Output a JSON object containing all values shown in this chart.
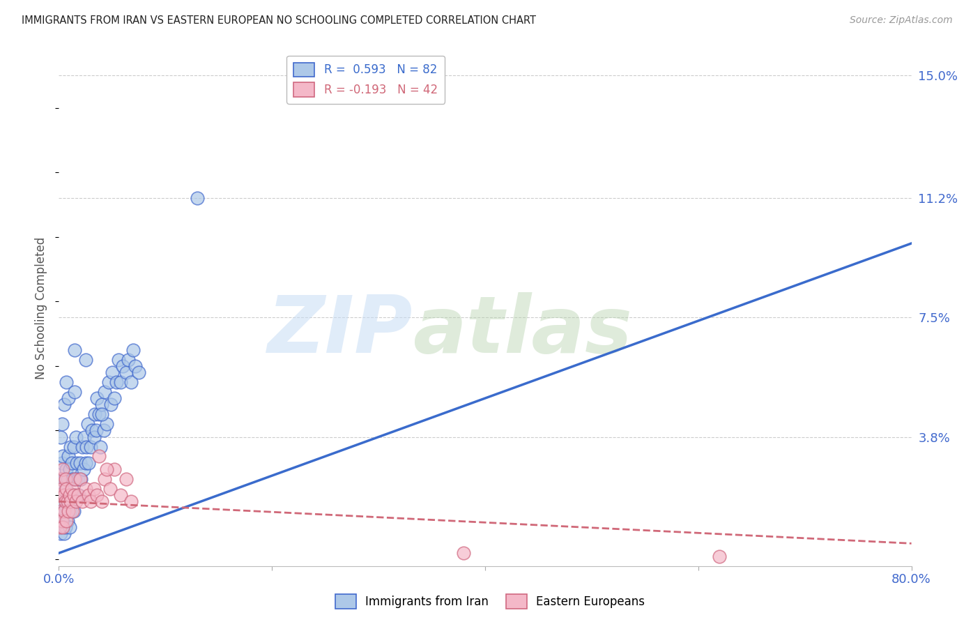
{
  "title": "IMMIGRANTS FROM IRAN VS EASTERN EUROPEAN NO SCHOOLING COMPLETED CORRELATION CHART",
  "source": "Source: ZipAtlas.com",
  "ylabel": "No Schooling Completed",
  "xlim": [
    0.0,
    0.8
  ],
  "ylim": [
    -0.002,
    0.158
  ],
  "ytick_vals": [
    0.0,
    0.038,
    0.075,
    0.112,
    0.15
  ],
  "ytick_labels": [
    "",
    "3.8%",
    "7.5%",
    "11.2%",
    "15.0%"
  ],
  "xtick_vals": [
    0.0,
    0.2,
    0.4,
    0.6,
    0.8
  ],
  "xtick_labels": [
    "0.0%",
    "",
    "",
    "",
    "80.0%"
  ],
  "legend1_label": "R =  0.593   N = 82",
  "legend2_label": "R = -0.193   N = 42",
  "iran_face_color": "#adc8e8",
  "iran_edge_color": "#4169cd",
  "eastern_face_color": "#f4b8c8",
  "eastern_edge_color": "#d06880",
  "iran_line_color": "#3a6bcc",
  "eastern_line_color": "#d06878",
  "grid_color": "#cccccc",
  "iran_trend_x0": 0.0,
  "iran_trend_x1": 0.8,
  "iran_trend_y0": 0.002,
  "iran_trend_y1": 0.098,
  "eastern_trend_x0": 0.0,
  "eastern_trend_x1": 0.8,
  "eastern_trend_y0": 0.018,
  "eastern_trend_y1": 0.005,
  "iran_scatter_x": [
    0.001,
    0.001,
    0.002,
    0.002,
    0.002,
    0.003,
    0.003,
    0.003,
    0.004,
    0.004,
    0.004,
    0.005,
    0.005,
    0.005,
    0.006,
    0.006,
    0.007,
    0.007,
    0.008,
    0.008,
    0.009,
    0.009,
    0.01,
    0.01,
    0.011,
    0.011,
    0.012,
    0.012,
    0.013,
    0.014,
    0.014,
    0.015,
    0.016,
    0.016,
    0.017,
    0.018,
    0.019,
    0.02,
    0.021,
    0.022,
    0.023,
    0.024,
    0.025,
    0.026,
    0.027,
    0.028,
    0.03,
    0.031,
    0.033,
    0.034,
    0.035,
    0.036,
    0.038,
    0.039,
    0.04,
    0.042,
    0.043,
    0.045,
    0.047,
    0.049,
    0.05,
    0.052,
    0.054,
    0.056,
    0.058,
    0.06,
    0.063,
    0.065,
    0.068,
    0.07,
    0.072,
    0.075,
    0.002,
    0.003,
    0.005,
    0.007,
    0.009,
    0.015,
    0.025,
    0.04,
    0.13,
    0.015
  ],
  "iran_scatter_y": [
    0.01,
    0.02,
    0.008,
    0.015,
    0.025,
    0.01,
    0.018,
    0.03,
    0.012,
    0.02,
    0.032,
    0.008,
    0.015,
    0.025,
    0.01,
    0.022,
    0.015,
    0.028,
    0.012,
    0.025,
    0.018,
    0.032,
    0.01,
    0.028,
    0.015,
    0.035,
    0.02,
    0.03,
    0.025,
    0.015,
    0.035,
    0.02,
    0.025,
    0.038,
    0.03,
    0.025,
    0.02,
    0.03,
    0.025,
    0.035,
    0.028,
    0.038,
    0.03,
    0.035,
    0.042,
    0.03,
    0.035,
    0.04,
    0.038,
    0.045,
    0.04,
    0.05,
    0.045,
    0.035,
    0.048,
    0.04,
    0.052,
    0.042,
    0.055,
    0.048,
    0.058,
    0.05,
    0.055,
    0.062,
    0.055,
    0.06,
    0.058,
    0.062,
    0.055,
    0.065,
    0.06,
    0.058,
    0.038,
    0.042,
    0.048,
    0.055,
    0.05,
    0.052,
    0.062,
    0.045,
    0.112,
    0.065
  ],
  "eastern_scatter_x": [
    0.001,
    0.001,
    0.002,
    0.002,
    0.003,
    0.003,
    0.004,
    0.004,
    0.005,
    0.005,
    0.006,
    0.006,
    0.007,
    0.007,
    0.008,
    0.009,
    0.01,
    0.011,
    0.012,
    0.013,
    0.014,
    0.015,
    0.016,
    0.018,
    0.02,
    0.022,
    0.025,
    0.028,
    0.03,
    0.033,
    0.036,
    0.04,
    0.043,
    0.048,
    0.052,
    0.058,
    0.063,
    0.068,
    0.038,
    0.045,
    0.38,
    0.62
  ],
  "eastern_scatter_y": [
    0.01,
    0.02,
    0.015,
    0.025,
    0.012,
    0.022,
    0.01,
    0.028,
    0.015,
    0.02,
    0.018,
    0.025,
    0.012,
    0.022,
    0.018,
    0.015,
    0.02,
    0.018,
    0.022,
    0.015,
    0.02,
    0.025,
    0.018,
    0.02,
    0.025,
    0.018,
    0.022,
    0.02,
    0.018,
    0.022,
    0.02,
    0.018,
    0.025,
    0.022,
    0.028,
    0.02,
    0.025,
    0.018,
    0.032,
    0.028,
    0.002,
    0.001
  ]
}
